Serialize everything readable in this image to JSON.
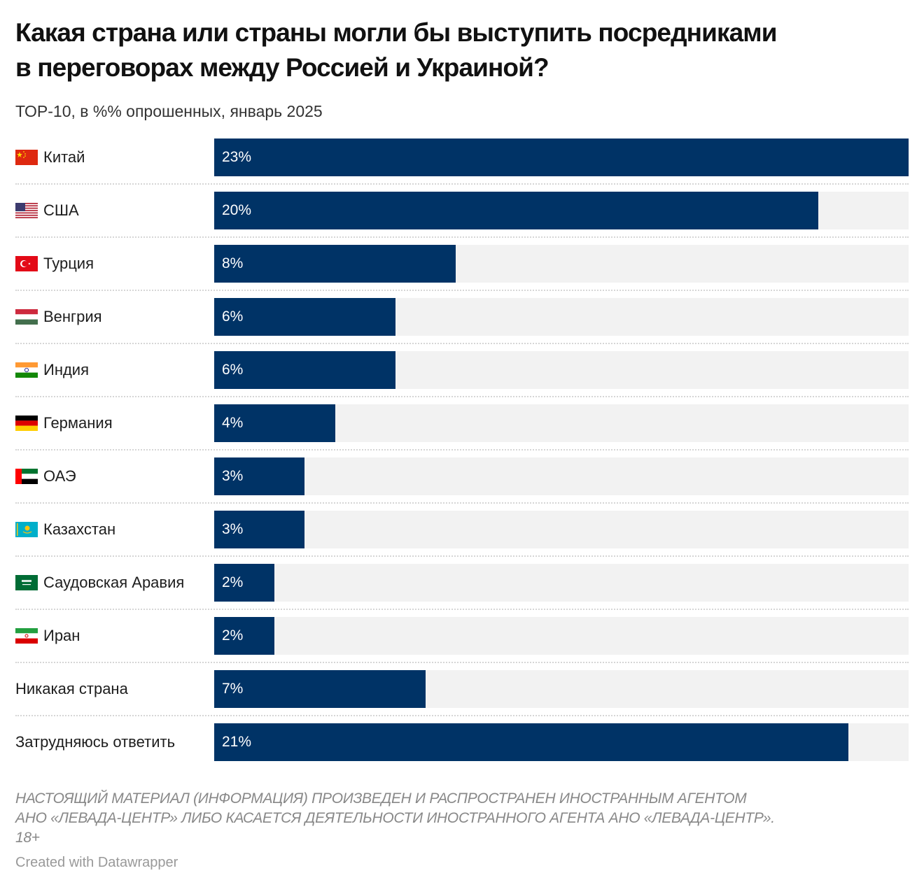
{
  "title_line1": "Какая страна или страны могли бы выступить посредниками",
  "title_line2": "в переговорах между Россией и Украиной?",
  "subtitle": "ТОР-10, в %% опрошенных, январь 2025",
  "note_lines": [
    "НАСТОЯЩИЙ МАТЕРИАЛ (ИНФОРМАЦИЯ) ПРОИЗВЕДЕН И РАСПРОСТРАНЕН ИНОСТРАННЫМ АГЕНТОМ",
    "АНО «ЛЕВАДА-ЦЕНТР» ЛИБО КАСАЕТСЯ ДЕЯТЕЛЬНОСТИ ИНОСТРАННОГО АГЕНТА АНО «ЛЕВАДА-ЦЕНТР».",
    "18+"
  ],
  "credit": "Created with Datawrapper",
  "colors": {
    "bar": "#003366",
    "track": "#f2f2f2"
  },
  "chart_data": {
    "type": "bar",
    "orientation": "horizontal",
    "xlim": [
      0,
      23
    ],
    "categories": [
      "Китай",
      "США",
      "Турция",
      "Венгрия",
      "Индия",
      "Германия",
      "ОАЭ",
      "Казахстан",
      "Саудовская Аравия",
      "Иран",
      "Никакая страна",
      "Затрудняюсь ответить"
    ],
    "values": [
      23,
      20,
      8,
      6,
      6,
      4,
      3,
      3,
      2,
      2,
      7,
      21
    ],
    "value_labels": [
      "23%",
      "20%",
      "8%",
      "6%",
      "6%",
      "4%",
      "3%",
      "3%",
      "2%",
      "2%",
      "7%",
      "21%"
    ],
    "flags": [
      "china-flag-icon",
      "usa-flag-icon",
      "turkey-flag-icon",
      "hungary-flag-icon",
      "india-flag-icon",
      "germany-flag-icon",
      "uae-flag-icon",
      "kazakhstan-flag-icon",
      "saudi-arabia-flag-icon",
      "iran-flag-icon",
      null,
      null
    ]
  }
}
